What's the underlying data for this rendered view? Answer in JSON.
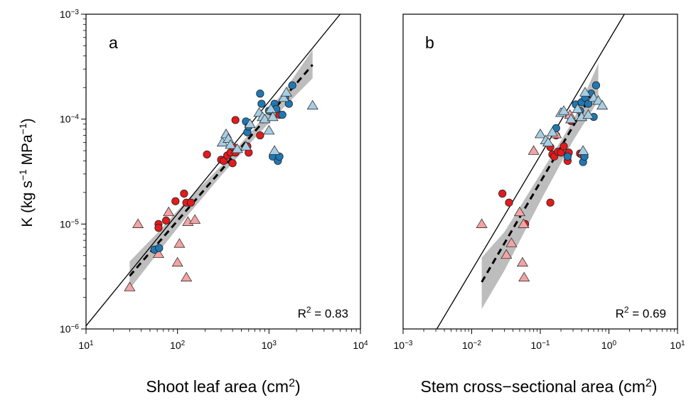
{
  "colors": {
    "red": "#e41a1c",
    "pink": "#f4a3a3",
    "blue": "#1f78b4",
    "lightblue": "#a6cee3",
    "band": "#bdbdbd"
  },
  "y_axis": {
    "label_main": "K (kg s",
    "label_sup1": "−1",
    "label_mid": " MPa",
    "label_sup2": "−1",
    "label_end": ")",
    "ticks": [
      {
        "base": "10",
        "exp": "−6"
      },
      {
        "base": "10",
        "exp": "−5"
      },
      {
        "base": "10",
        "exp": "−4"
      },
      {
        "base": "10",
        "exp": "−3"
      }
    ]
  },
  "chart_data": [
    {
      "type": "scatter",
      "panel_label": "a",
      "xlabel_main": "Shoot leaf area (cm",
      "xlabel_sup": "2",
      "xlabel_end": ")",
      "x_scale": "log",
      "y_scale": "log",
      "xlim": [
        10,
        10000
      ],
      "ylim": [
        1e-06,
        0.001
      ],
      "x_ticks": [
        {
          "base": "10",
          "exp": "1"
        },
        {
          "base": "10",
          "exp": "2"
        },
        {
          "base": "10",
          "exp": "3"
        },
        {
          "base": "10",
          "exp": "4"
        }
      ],
      "r2_label": "R",
      "r2_sup": "2",
      "r2_value": " = 0.83",
      "solid_line": [
        [
          10,
          1.07e-06
        ],
        [
          6000,
          0.001
        ]
      ],
      "fit_line": [
        [
          30,
          3.2e-06
        ],
        [
          3000,
          0.00033
        ]
      ],
      "band": {
        "x": [
          30,
          60,
          120,
          300,
          700,
          1500,
          3000
        ],
        "lower": [
          2.4e-06,
          5.2e-06,
          1.12e-05,
          2.9e-05,
          6.6e-05,
          0.000133,
          0.000245
        ],
        "upper": [
          4.4e-06,
          8.2e-06,
          1.6e-05,
          3.6e-05,
          8.3e-05,
          0.00019,
          0.00046
        ]
      },
      "points": [
        {
          "x": 62,
          "y": 1e-05,
          "g": "red",
          "s": "circle"
        },
        {
          "x": 62,
          "y": 9.2e-06,
          "g": "red",
          "s": "circle"
        },
        {
          "x": 75,
          "y": 1.08e-05,
          "g": "red",
          "s": "circle"
        },
        {
          "x": 95,
          "y": 1.65e-05,
          "g": "red",
          "s": "circle"
        },
        {
          "x": 118,
          "y": 1.95e-05,
          "g": "red",
          "s": "circle"
        },
        {
          "x": 125,
          "y": 1.6e-05,
          "g": "red",
          "s": "circle"
        },
        {
          "x": 140,
          "y": 1.6e-05,
          "g": "red",
          "s": "circle"
        },
        {
          "x": 210,
          "y": 4.6e-05,
          "g": "red",
          "s": "circle"
        },
        {
          "x": 300,
          "y": 4.1e-05,
          "g": "red",
          "s": "circle"
        },
        {
          "x": 320,
          "y": 4e-05,
          "g": "red",
          "s": "circle"
        },
        {
          "x": 350,
          "y": 4.5e-05,
          "g": "red",
          "s": "circle"
        },
        {
          "x": 380,
          "y": 4.8e-05,
          "g": "red",
          "s": "circle"
        },
        {
          "x": 400,
          "y": 3.8e-05,
          "g": "red",
          "s": "circle"
        },
        {
          "x": 410,
          "y": 5.4e-05,
          "g": "red",
          "s": "circle"
        },
        {
          "x": 430,
          "y": 4.8e-05,
          "g": "red",
          "s": "circle"
        },
        {
          "x": 430,
          "y": 9.8e-05,
          "g": "red",
          "s": "circle"
        },
        {
          "x": 580,
          "y": 5.5e-05,
          "g": "red",
          "s": "circle"
        },
        {
          "x": 600,
          "y": 4.8e-05,
          "g": "red",
          "s": "circle"
        },
        {
          "x": 800,
          "y": 7e-05,
          "g": "red",
          "s": "circle"
        },
        {
          "x": 1300,
          "y": 0.00011,
          "g": "red",
          "s": "circle"
        },
        {
          "x": 30,
          "y": 2.5e-06,
          "g": "pink",
          "s": "triangle"
        },
        {
          "x": 37,
          "y": 1e-05,
          "g": "pink",
          "s": "triangle"
        },
        {
          "x": 62,
          "y": 5.2e-06,
          "g": "pink",
          "s": "triangle"
        },
        {
          "x": 80,
          "y": 1.3e-05,
          "g": "pink",
          "s": "triangle"
        },
        {
          "x": 100,
          "y": 4.3e-06,
          "g": "pink",
          "s": "triangle"
        },
        {
          "x": 105,
          "y": 6.5e-06,
          "g": "pink",
          "s": "triangle"
        },
        {
          "x": 125,
          "y": 3.1e-06,
          "g": "pink",
          "s": "triangle"
        },
        {
          "x": 130,
          "y": 1.05e-05,
          "g": "pink",
          "s": "triangle"
        },
        {
          "x": 155,
          "y": 1.1e-05,
          "g": "pink",
          "s": "triangle"
        },
        {
          "x": 56,
          "y": 5.7e-06,
          "g": "blue",
          "s": "circle"
        },
        {
          "x": 63,
          "y": 5.9e-06,
          "g": "blue",
          "s": "circle"
        },
        {
          "x": 560,
          "y": 9.5e-05,
          "g": "blue",
          "s": "circle"
        },
        {
          "x": 580,
          "y": 7.5e-05,
          "g": "blue",
          "s": "circle"
        },
        {
          "x": 600,
          "y": 8.5e-05,
          "g": "blue",
          "s": "circle"
        },
        {
          "x": 800,
          "y": 0.000175,
          "g": "blue",
          "s": "circle"
        },
        {
          "x": 830,
          "y": 0.00014,
          "g": "blue",
          "s": "circle"
        },
        {
          "x": 1000,
          "y": 0.00012,
          "g": "blue",
          "s": "circle"
        },
        {
          "x": 1100,
          "y": 4.4e-05,
          "g": "blue",
          "s": "circle"
        },
        {
          "x": 1150,
          "y": 0.00014,
          "g": "blue",
          "s": "circle"
        },
        {
          "x": 1200,
          "y": 0.000125,
          "g": "blue",
          "s": "circle"
        },
        {
          "x": 1250,
          "y": 4e-05,
          "g": "blue",
          "s": "circle"
        },
        {
          "x": 1300,
          "y": 4.4e-05,
          "g": "blue",
          "s": "circle"
        },
        {
          "x": 1400,
          "y": 0.00011,
          "g": "blue",
          "s": "circle"
        },
        {
          "x": 1500,
          "y": 0.00016,
          "g": "blue",
          "s": "circle"
        },
        {
          "x": 1650,
          "y": 0.00014,
          "g": "blue",
          "s": "circle"
        },
        {
          "x": 1800,
          "y": 0.00021,
          "g": "blue",
          "s": "circle"
        },
        {
          "x": 310,
          "y": 6e-05,
          "g": "lightblue",
          "s": "triangle"
        },
        {
          "x": 340,
          "y": 7.2e-05,
          "g": "lightblue",
          "s": "triangle"
        },
        {
          "x": 360,
          "y": 6.5e-05,
          "g": "lightblue",
          "s": "triangle"
        },
        {
          "x": 380,
          "y": 5.7e-05,
          "g": "lightblue",
          "s": "triangle"
        },
        {
          "x": 450,
          "y": 5.2e-05,
          "g": "lightblue",
          "s": "triangle"
        },
        {
          "x": 560,
          "y": 5.5e-05,
          "g": "lightblue",
          "s": "triangle"
        },
        {
          "x": 620,
          "y": 9e-05,
          "g": "lightblue",
          "s": "triangle"
        },
        {
          "x": 780,
          "y": 0.000115,
          "g": "lightblue",
          "s": "triangle"
        },
        {
          "x": 850,
          "y": 0.000105,
          "g": "lightblue",
          "s": "triangle"
        },
        {
          "x": 900,
          "y": 0.0001,
          "g": "lightblue",
          "s": "triangle"
        },
        {
          "x": 1000,
          "y": 7.8e-05,
          "g": "lightblue",
          "s": "triangle"
        },
        {
          "x": 1050,
          "y": 0.000125,
          "g": "lightblue",
          "s": "triangle"
        },
        {
          "x": 1100,
          "y": 0.000105,
          "g": "lightblue",
          "s": "triangle"
        },
        {
          "x": 1150,
          "y": 5e-05,
          "g": "lightblue",
          "s": "triangle"
        },
        {
          "x": 1450,
          "y": 0.00016,
          "g": "lightblue",
          "s": "triangle"
        },
        {
          "x": 1550,
          "y": 0.00018,
          "g": "lightblue",
          "s": "triangle"
        },
        {
          "x": 3000,
          "y": 0.000135,
          "g": "lightblue",
          "s": "triangle"
        }
      ]
    },
    {
      "type": "scatter",
      "panel_label": "b",
      "xlabel_main": "Stem cross−sectional area (cm",
      "xlabel_sup": "2",
      "xlabel_end": ")",
      "x_scale": "log",
      "y_scale": "log",
      "xlim": [
        0.001,
        10
      ],
      "ylim": [
        1e-06,
        0.001
      ],
      "x_ticks": [
        {
          "base": "10",
          "exp": "−3"
        },
        {
          "base": "10",
          "exp": "−2"
        },
        {
          "base": "10",
          "exp": "−1"
        },
        {
          "base": "10",
          "exp": "0"
        },
        {
          "base": "10",
          "exp": "1"
        }
      ],
      "r2_label": "R",
      "r2_sup": "2",
      "r2_value": " = 0.69",
      "solid_line": [
        [
          0.0031,
          1e-06
        ],
        [
          1.68,
          0.001
        ]
      ],
      "fit_line": [
        [
          0.014,
          2.8e-06
        ],
        [
          0.7,
          0.00022
        ]
      ],
      "band": {
        "x": [
          0.014,
          0.03,
          0.1,
          0.3,
          0.7
        ],
        "lower": [
          1.55e-06,
          3.6e-06,
          1.65e-05,
          6.2e-05,
          0.00015
        ],
        "upper": [
          4.8e-06,
          8.4e-06,
          3e-05,
          9.6e-05,
          0.00034
        ]
      },
      "points": [
        {
          "x": 0.028,
          "y": 1.95e-05,
          "g": "red",
          "s": "circle"
        },
        {
          "x": 0.035,
          "y": 1.6e-05,
          "g": "red",
          "s": "circle"
        },
        {
          "x": 0.06,
          "y": 1e-05,
          "g": "red",
          "s": "circle"
        },
        {
          "x": 0.14,
          "y": 1.6e-05,
          "g": "red",
          "s": "circle"
        },
        {
          "x": 0.14,
          "y": 5.4e-05,
          "g": "red",
          "s": "circle"
        },
        {
          "x": 0.15,
          "y": 4.6e-05,
          "g": "red",
          "s": "circle"
        },
        {
          "x": 0.16,
          "y": 4.4e-05,
          "g": "red",
          "s": "circle"
        },
        {
          "x": 0.17,
          "y": 7e-05,
          "g": "red",
          "s": "circle"
        },
        {
          "x": 0.18,
          "y": 4.9e-05,
          "g": "red",
          "s": "circle"
        },
        {
          "x": 0.2,
          "y": 4.8e-05,
          "g": "red",
          "s": "circle"
        },
        {
          "x": 0.22,
          "y": 5.5e-05,
          "g": "red",
          "s": "circle"
        },
        {
          "x": 0.25,
          "y": 4e-05,
          "g": "red",
          "s": "circle"
        },
        {
          "x": 0.26,
          "y": 4.8e-05,
          "g": "red",
          "s": "circle"
        },
        {
          "x": 0.28,
          "y": 9.6e-05,
          "g": "red",
          "s": "circle"
        },
        {
          "x": 0.38,
          "y": 4.7e-05,
          "g": "red",
          "s": "circle"
        },
        {
          "x": 0.4,
          "y": 4.6e-05,
          "g": "red",
          "s": "circle"
        },
        {
          "x": 0.014,
          "y": 1e-05,
          "g": "pink",
          "s": "triangle"
        },
        {
          "x": 0.032,
          "y": 5.1e-06,
          "g": "pink",
          "s": "triangle"
        },
        {
          "x": 0.038,
          "y": 6.6e-06,
          "g": "pink",
          "s": "triangle"
        },
        {
          "x": 0.05,
          "y": 1.3e-05,
          "g": "pink",
          "s": "triangle"
        },
        {
          "x": 0.055,
          "y": 4.3e-06,
          "g": "pink",
          "s": "triangle"
        },
        {
          "x": 0.057,
          "y": 1e-05,
          "g": "pink",
          "s": "triangle"
        },
        {
          "x": 0.058,
          "y": 3.1e-06,
          "g": "pink",
          "s": "triangle"
        },
        {
          "x": 0.08,
          "y": 5e-05,
          "g": "pink",
          "s": "triangle"
        },
        {
          "x": 0.17,
          "y": 7.2e-05,
          "g": "pink",
          "s": "triangle"
        },
        {
          "x": 0.27,
          "y": 0.00011,
          "g": "pink",
          "s": "triangle"
        },
        {
          "x": 0.17,
          "y": 8.2e-05,
          "g": "blue",
          "s": "circle"
        },
        {
          "x": 0.25,
          "y": 4.4e-05,
          "g": "blue",
          "s": "circle"
        },
        {
          "x": 0.33,
          "y": 0.000138,
          "g": "blue",
          "s": "circle"
        },
        {
          "x": 0.38,
          "y": 0.00012,
          "g": "blue",
          "s": "circle"
        },
        {
          "x": 0.4,
          "y": 0.000145,
          "g": "blue",
          "s": "circle"
        },
        {
          "x": 0.42,
          "y": 3.9e-05,
          "g": "blue",
          "s": "circle"
        },
        {
          "x": 0.44,
          "y": 4.4e-05,
          "g": "blue",
          "s": "circle"
        },
        {
          "x": 0.45,
          "y": 0.00016,
          "g": "blue",
          "s": "circle"
        },
        {
          "x": 0.5,
          "y": 0.00014,
          "g": "blue",
          "s": "circle"
        },
        {
          "x": 0.55,
          "y": 0.000175,
          "g": "blue",
          "s": "circle"
        },
        {
          "x": 0.6,
          "y": 0.000105,
          "g": "blue",
          "s": "circle"
        },
        {
          "x": 0.65,
          "y": 0.00021,
          "g": "blue",
          "s": "circle"
        },
        {
          "x": 0.1,
          "y": 7.2e-05,
          "g": "lightblue",
          "s": "triangle"
        },
        {
          "x": 0.12,
          "y": 6.3e-05,
          "g": "lightblue",
          "s": "triangle"
        },
        {
          "x": 0.13,
          "y": 6e-05,
          "g": "lightblue",
          "s": "triangle"
        },
        {
          "x": 0.15,
          "y": 7.5e-05,
          "g": "lightblue",
          "s": "triangle"
        },
        {
          "x": 0.2,
          "y": 0.000115,
          "g": "lightblue",
          "s": "triangle"
        },
        {
          "x": 0.22,
          "y": 0.00012,
          "g": "lightblue",
          "s": "triangle"
        },
        {
          "x": 0.28,
          "y": 0.0001,
          "g": "lightblue",
          "s": "triangle"
        },
        {
          "x": 0.35,
          "y": 0.000125,
          "g": "lightblue",
          "s": "triangle"
        },
        {
          "x": 0.4,
          "y": 0.000105,
          "g": "lightblue",
          "s": "triangle"
        },
        {
          "x": 0.42,
          "y": 5e-05,
          "g": "lightblue",
          "s": "triangle"
        },
        {
          "x": 0.45,
          "y": 0.00018,
          "g": "lightblue",
          "s": "triangle"
        },
        {
          "x": 0.5,
          "y": 0.00011,
          "g": "lightblue",
          "s": "triangle"
        },
        {
          "x": 0.6,
          "y": 0.00016,
          "g": "lightblue",
          "s": "triangle"
        },
        {
          "x": 0.7,
          "y": 0.00015,
          "g": "lightblue",
          "s": "triangle"
        },
        {
          "x": 0.8,
          "y": 0.000135,
          "g": "lightblue",
          "s": "triangle"
        }
      ]
    }
  ]
}
